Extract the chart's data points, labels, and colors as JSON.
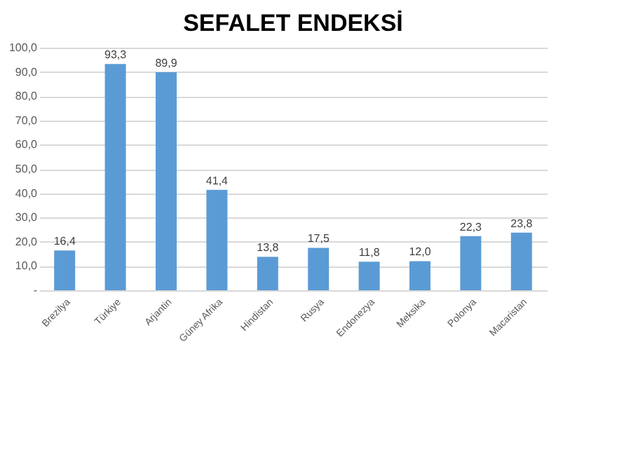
{
  "chart_data": {
    "type": "bar",
    "title": "SEFALET ENDEKSİ",
    "categories": [
      "Brezilya",
      "Türkiye",
      "Arjantin",
      "Güney Afrika",
      "Hindistan",
      "Rusya",
      "Endonezya",
      "Meksika",
      "Polonya",
      "Macaristan"
    ],
    "values": [
      16.4,
      93.3,
      89.9,
      41.4,
      13.8,
      17.5,
      11.8,
      12.0,
      22.3,
      23.8
    ],
    "value_labels": [
      "16,4",
      "93,3",
      "89,9",
      "41,4",
      "13,8",
      "17,5",
      "11,8",
      "12,0",
      "22,3",
      "23,8"
    ],
    "color": "#5b9bd5",
    "ylim": [
      0,
      100
    ],
    "yticks": [
      {
        "value": 0,
        "label": "-"
      },
      {
        "value": 10,
        "label": "10,0"
      },
      {
        "value": 20,
        "label": "20,0"
      },
      {
        "value": 30,
        "label": "30,0"
      },
      {
        "value": 40,
        "label": "40,0"
      },
      {
        "value": 50,
        "label": "50,0"
      },
      {
        "value": 60,
        "label": "60,0"
      },
      {
        "value": 70,
        "label": "70,0"
      },
      {
        "value": 80,
        "label": "80,0"
      },
      {
        "value": 90,
        "label": "90,0"
      },
      {
        "value": 100,
        "label": "100,0"
      }
    ],
    "grid": "y"
  }
}
